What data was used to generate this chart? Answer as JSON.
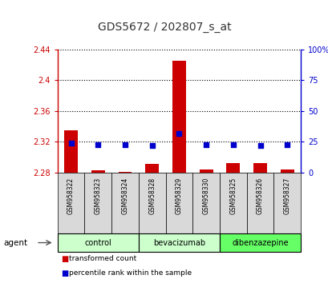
{
  "title": "GDS5672 / 202807_s_at",
  "samples": [
    "GSM958322",
    "GSM958323",
    "GSM958324",
    "GSM958328",
    "GSM958329",
    "GSM958330",
    "GSM958325",
    "GSM958326",
    "GSM958327"
  ],
  "transformed_count": [
    2.335,
    2.283,
    2.281,
    2.291,
    2.425,
    2.284,
    2.292,
    2.292,
    2.284
  ],
  "percentile_rank": [
    24,
    23,
    23,
    22,
    32,
    23,
    23,
    22,
    23
  ],
  "ylim_left": [
    2.28,
    2.44
  ],
  "ylim_right": [
    0,
    100
  ],
  "yticks_left": [
    2.28,
    2.32,
    2.36,
    2.4,
    2.44
  ],
  "yticks_right": [
    0,
    25,
    50,
    75,
    100
  ],
  "ytick_labels_right": [
    "0",
    "25",
    "50",
    "75",
    "100%"
  ],
  "groups": [
    {
      "label": "control",
      "start": 0,
      "end": 3,
      "color": "#ccffcc"
    },
    {
      "label": "bevacizumab",
      "start": 3,
      "end": 6,
      "color": "#ccffcc"
    },
    {
      "label": "dibenzazepine",
      "start": 6,
      "end": 9,
      "color": "#66ff66"
    }
  ],
  "bar_color": "#cc0000",
  "dot_color": "#0000cc",
  "bar_width": 0.5,
  "dot_size": 25,
  "bar_baseline": 2.28,
  "agent_label": "agent",
  "legend_red_label": "transformed count",
  "legend_blue_label": "percentile rank within the sample",
  "title_color": "#333333",
  "left_axis_color": "#cc0000",
  "right_axis_color": "#0000cc",
  "grid_color": "#000000",
  "background_color": "#ffffff"
}
